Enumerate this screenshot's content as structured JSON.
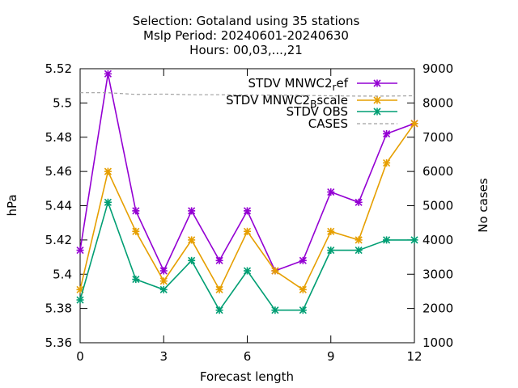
{
  "chart_data": {
    "type": "line",
    "title_lines": [
      "Selection: Gotaland using    35 stations",
      "Mslp   Period: 20240601-20240630",
      "Hours: 00,03,...,21"
    ],
    "xlabel": "Forecast length",
    "ylabel": "hPa",
    "y2label": "No cases",
    "x": [
      0,
      1,
      2,
      3,
      4,
      5,
      6,
      7,
      8,
      9,
      10,
      11,
      12
    ],
    "xlim": [
      0,
      12
    ],
    "xticks": [
      0,
      3,
      6,
      9,
      12
    ],
    "ylim": [
      5.36,
      5.52
    ],
    "yticks": [
      "5.36",
      "5.38",
      "5.4",
      "5.42",
      "5.44",
      "5.46",
      "5.48",
      "5.5",
      "5.52"
    ],
    "y2lim": [
      1000,
      9000
    ],
    "y2ticks": [
      "1000",
      "2000",
      "3000",
      "4000",
      "5000",
      "6000",
      "7000",
      "8000",
      "9000"
    ],
    "legend_position": "top-right",
    "series": [
      {
        "name": "STDV MNWC2_ref",
        "legend_parts": [
          "STDV MNWC2",
          "r",
          "ef"
        ],
        "color": "#9400d3",
        "axis": "y1",
        "marker": "x",
        "values": [
          5.414,
          5.517,
          5.437,
          5.402,
          5.437,
          5.408,
          5.437,
          5.402,
          5.408,
          5.448,
          5.442,
          5.482,
          5.488
        ]
      },
      {
        "name": "STDV MNWC2_Bscale",
        "legend_parts": [
          "STDV MNWC2",
          "B",
          "scale"
        ],
        "color": "#e69f00",
        "axis": "y1",
        "marker": "x",
        "values": [
          5.391,
          5.46,
          5.425,
          5.396,
          5.42,
          5.391,
          5.425,
          5.402,
          5.391,
          5.425,
          5.42,
          5.465,
          5.488
        ]
      },
      {
        "name": "STDV OBS",
        "legend_parts": [
          "STDV OBS"
        ],
        "color": "#009e73",
        "axis": "y1",
        "marker": "x",
        "values": [
          5.385,
          5.442,
          5.397,
          5.391,
          5.408,
          5.379,
          5.402,
          5.379,
          5.379,
          5.414,
          5.414,
          5.42,
          5.42
        ]
      },
      {
        "name": "CASES",
        "legend_parts": [
          "CASES"
        ],
        "color": "#a0a0a0",
        "axis": "y2",
        "dashed": true,
        "values": [
          8300,
          8300,
          8250,
          8260,
          8240,
          8240,
          8230,
          8230,
          8220,
          8210,
          8200,
          8200,
          8210
        ]
      }
    ]
  }
}
